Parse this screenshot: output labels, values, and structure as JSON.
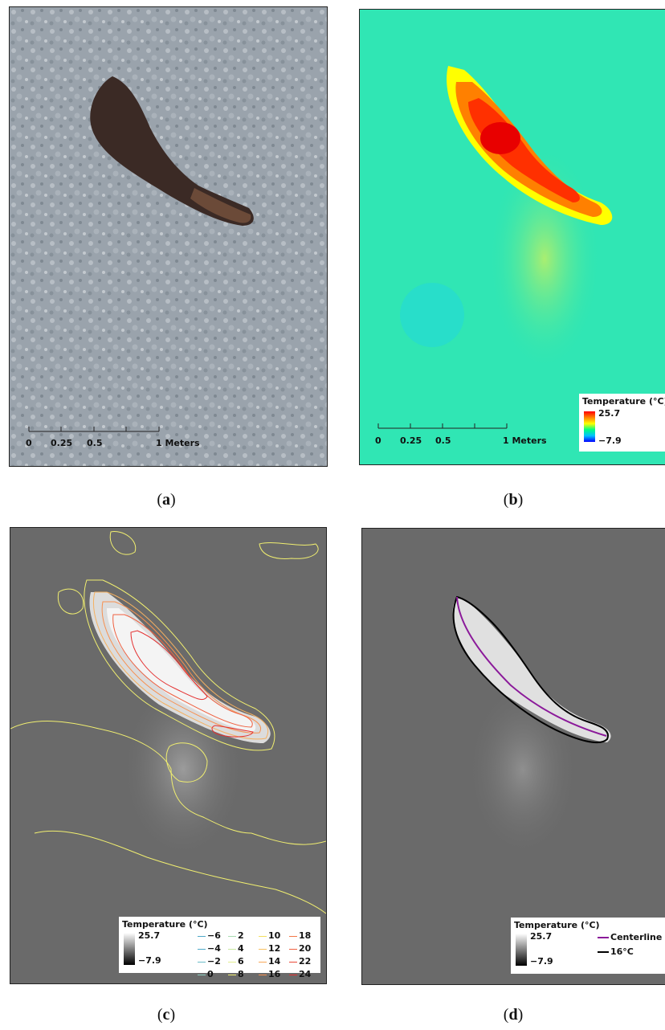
{
  "figure": {
    "panels": [
      {
        "id": "a",
        "caption_open": "(",
        "caption_letter": "a",
        "caption_close": ")"
      },
      {
        "id": "b",
        "caption_open": "(",
        "caption_letter": "b",
        "caption_close": ")"
      },
      {
        "id": "c",
        "caption_open": "(",
        "caption_letter": "c",
        "caption_close": ")"
      },
      {
        "id": "d",
        "caption_open": "(",
        "caption_letter": "d",
        "caption_close": ")"
      }
    ],
    "scalebar": {
      "labels": [
        "0",
        "0.25",
        "0.5",
        "1 Meters"
      ]
    },
    "legend": {
      "title": "Temperature (°C)",
      "max": "25.7",
      "min": "−7.9",
      "colors": {
        "ramp_b": [
          "#ff0000",
          "#ff8000",
          "#ffff00",
          "#00ff80",
          "#00c0ff",
          "#0000ff"
        ],
        "ramp_gray": [
          "#ffffff",
          "#000000"
        ]
      }
    },
    "contours": {
      "levels": [
        "−6",
        "−4",
        "−2",
        "0",
        "2",
        "4",
        "6",
        "8",
        "10",
        "12",
        "14",
        "16",
        "18",
        "20",
        "22",
        "24"
      ],
      "colors": [
        "#4fa9c8",
        "#4fa9c8",
        "#6bbbc8",
        "#8ccfc0",
        "#a9dcb0",
        "#c8e8a0",
        "#e0ee90",
        "#f0ee70",
        "#f4e060",
        "#f7c060",
        "#f8a858",
        "#f79050",
        "#f37848",
        "#ef6040",
        "#ea4a38",
        "#e43030"
      ]
    },
    "panel_d_legend": {
      "centerline_label": "Centerline",
      "isotherm_label": "16°C",
      "centerline_color": "#8b1a9a",
      "isotherm_color": "#000000"
    }
  }
}
